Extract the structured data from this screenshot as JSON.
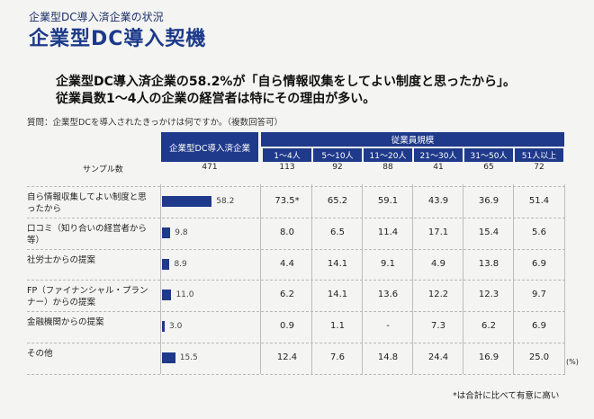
{
  "subtitle": "企業型DC導入済企業の状況",
  "title": "企業型DC導入契機",
  "headline_1": "企業型DC導入済企業の58.2%が「自ら情報収集をしてよい制度と思ったから」。",
  "headline_2": "従業員数1〜4人の企業の経営者は特にその理由が多い。",
  "question": "質問：企業型DCを導入されたきっかけは何ですか。（複数回答可）",
  "sample_label": "サンプル数",
  "unit_label": "(%)",
  "footnote": "*は合計に比べて有意に高い",
  "chart_data": {
    "type": "table",
    "overall_header": "企業型DC導入済企業",
    "group_header": "従業員規模",
    "columns": [
      "1〜4人",
      "5〜10人",
      "11〜20人",
      "21〜30人",
      "31〜50人",
      "51人以上"
    ],
    "sample_total": "471",
    "samples": [
      "113",
      "92",
      "88",
      "41",
      "65",
      "72"
    ],
    "bar_max": 100,
    "rows": [
      {
        "label": "自ら情報収集してよい制度と思ったから",
        "total": 58.2,
        "total_text": "58.2",
        "values": [
          "73.5*",
          "65.2",
          "59.1",
          "43.9",
          "36.9",
          "51.4"
        ]
      },
      {
        "label": "口コミ（知り合いの経営者から等）",
        "total": 9.8,
        "total_text": "9.8",
        "values": [
          "8.0",
          "6.5",
          "11.4",
          "17.1",
          "15.4",
          "5.6"
        ]
      },
      {
        "label": "社労士からの提案",
        "total": 8.9,
        "total_text": "8.9",
        "values": [
          "4.4",
          "14.1",
          "9.1",
          "4.9",
          "13.8",
          "6.9"
        ]
      },
      {
        "label": "FP（ファイナンシャル・プランナー）からの提案",
        "total": 11.0,
        "total_text": "11.0",
        "values": [
          "6.2",
          "14.1",
          "13.6",
          "12.2",
          "12.3",
          "9.7"
        ]
      },
      {
        "label": "金融機関からの提案",
        "total": 3.0,
        "total_text": "3.0",
        "values": [
          "0.9",
          "1.1",
          "-",
          "7.3",
          "6.2",
          "6.9"
        ]
      },
      {
        "label": "その他",
        "total": 15.5,
        "total_text": "15.5",
        "values": [
          "12.4",
          "7.6",
          "14.8",
          "24.4",
          "16.9",
          "25.0"
        ]
      }
    ]
  }
}
